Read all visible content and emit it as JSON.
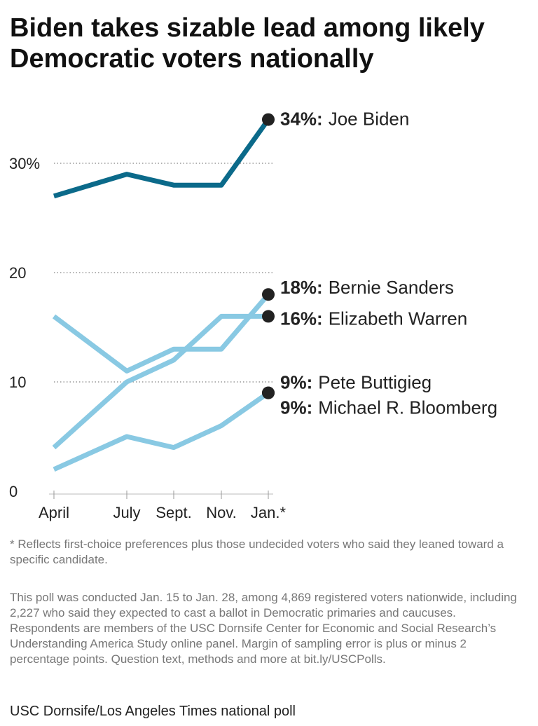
{
  "chart_data": {
    "type": "line",
    "title": "Biden takes sizable lead among likely Democratic voters nationally",
    "categories": [
      "April",
      "July",
      "Sept.",
      "Nov.",
      "Jan.*"
    ],
    "ylim": [
      0,
      35
    ],
    "yticks": [
      0,
      10,
      20,
      {
        "value": 30,
        "label": "30%"
      }
    ],
    "grid": true,
    "series": [
      {
        "name": "Joe Biden",
        "color": "#0b6a8a",
        "values": [
          27,
          29,
          28,
          28,
          34
        ],
        "value_labels": [
          null,
          null,
          null,
          null,
          "34%:"
        ]
      },
      {
        "name": "Bernie Sanders",
        "color": "#89c9e3",
        "values": [
          16,
          11,
          13,
          13,
          18
        ],
        "value_labels": [
          null,
          null,
          null,
          null,
          "18%:"
        ]
      },
      {
        "name": "Elizabeth Warren",
        "color": "#89c9e3",
        "values": [
          4,
          10,
          12,
          16,
          16
        ],
        "value_labels": [
          null,
          null,
          null,
          null,
          "16%:"
        ]
      },
      {
        "name": "Pete Buttigieg",
        "color": "#89c9e3",
        "values": [
          2,
          5,
          4,
          6,
          9
        ],
        "value_labels": [
          null,
          null,
          null,
          null,
          "9%:"
        ]
      },
      {
        "name": "Michael R. Bloomberg",
        "color": "#89c9e3",
        "values": [
          null,
          null,
          null,
          null,
          9
        ],
        "value_labels": [
          null,
          null,
          null,
          null,
          "9%:"
        ]
      }
    ],
    "footnote": "* Reflects first-choice preferences plus those undecided voters who said they leaned toward a specific candidate.",
    "note": "This poll was conducted Jan. 15 to Jan. 28, among 4,869 registered voters nationwide, including 2,227 who said they expected to cast a ballot in Democratic primaries and caucuses. Respondents are members of the USC Dornsife Center for Economic and Social Research’s Understanding America Study online panel. Margin of sampling error is plus or minus 2 percentage points. Question text, methods and more at bit.ly/USCPolls.",
    "source": "USC Dornsife/Los Angeles Times national poll"
  }
}
